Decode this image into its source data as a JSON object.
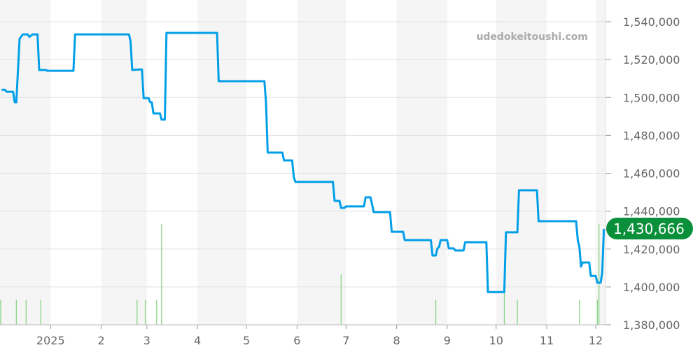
{
  "watermark": "udedokeitoushi.com",
  "current_price_label": "1,430,666",
  "colors": {
    "line": "#009fe8",
    "volume": "#88d488",
    "badge": "#0a8f3a",
    "band": "#f5f5f5",
    "grid": "#e0e0e0"
  },
  "chart_data": {
    "type": "line",
    "title": "",
    "xlabel": "",
    "ylabel": "",
    "xlim": [
      "2024-12-01",
      "2025-12-07"
    ],
    "ylim": [
      1380000,
      1540000
    ],
    "grid": true,
    "y_axis_position": "right",
    "y_ticks": [
      1380000,
      1400000,
      1420000,
      1440000,
      1460000,
      1480000,
      1500000,
      1520000,
      1540000
    ],
    "y_tick_labels": [
      "1,380,000",
      "1,400,000",
      "1,420,000",
      "1,440,000",
      "1,460,000",
      "1,480,000",
      "1,500,000",
      "1,520,000",
      "1,540,000"
    ],
    "x_ticks": [
      {
        "date": "2025-01-01",
        "label": "2025"
      },
      {
        "date": "2025-02-01",
        "label": "2"
      },
      {
        "date": "2025-03-01",
        "label": "3"
      },
      {
        "date": "2025-04-01",
        "label": "4"
      },
      {
        "date": "2025-05-01",
        "label": "5"
      },
      {
        "date": "2025-06-01",
        "label": "6"
      },
      {
        "date": "2025-07-01",
        "label": "7"
      },
      {
        "date": "2025-08-01",
        "label": "8"
      },
      {
        "date": "2025-09-01",
        "label": "9"
      },
      {
        "date": "2025-10-01",
        "label": "10"
      },
      {
        "date": "2025-11-01",
        "label": "11"
      },
      {
        "date": "2025-12-01",
        "label": "12"
      }
    ],
    "shaded_months": [
      [
        "2024-12-01",
        "2025-01-01"
      ],
      [
        "2025-02-01",
        "2025-03-01"
      ],
      [
        "2025-04-01",
        "2025-05-01"
      ],
      [
        "2025-06-01",
        "2025-07-01"
      ],
      [
        "2025-08-01",
        "2025-09-01"
      ],
      [
        "2025-10-01",
        "2025-11-01"
      ],
      [
        "2025-12-01",
        "2025-12-07"
      ]
    ],
    "series": [
      {
        "points": [
          [
            "2024-12-02",
            1504100
          ],
          [
            "2024-12-04",
            1504100
          ],
          [
            "2024-12-05",
            1503000
          ],
          [
            "2024-12-09",
            1503000
          ],
          [
            "2024-12-10",
            1497500
          ],
          [
            "2024-12-11",
            1497500
          ],
          [
            "2024-12-13",
            1531000
          ],
          [
            "2024-12-15",
            1533300
          ],
          [
            "2024-12-18",
            1533300
          ],
          [
            "2024-12-19",
            1532000
          ],
          [
            "2024-12-21",
            1533300
          ],
          [
            "2024-12-24",
            1533300
          ],
          [
            "2024-12-25",
            1514500
          ],
          [
            "2024-12-29",
            1514500
          ],
          [
            "2024-12-30",
            1514100
          ],
          [
            "2025-01-15",
            1514100
          ],
          [
            "2025-01-16",
            1533300
          ],
          [
            "2025-02-18",
            1533300
          ],
          [
            "2025-02-19",
            1529600
          ],
          [
            "2025-02-20",
            1514500
          ],
          [
            "2025-02-24",
            1514800
          ],
          [
            "2025-02-26",
            1514800
          ],
          [
            "2025-02-27",
            1499700
          ],
          [
            "2025-03-02",
            1499700
          ],
          [
            "2025-03-03",
            1497500
          ],
          [
            "2025-03-04",
            1497500
          ],
          [
            "2025-03-05",
            1491600
          ],
          [
            "2025-03-09",
            1491600
          ],
          [
            "2025-03-10",
            1488300
          ],
          [
            "2025-03-12",
            1488300
          ],
          [
            "2025-03-13",
            1534100
          ],
          [
            "2025-04-13",
            1534100
          ],
          [
            "2025-04-14",
            1508600
          ],
          [
            "2025-05-12",
            1508600
          ],
          [
            "2025-05-13",
            1497500
          ],
          [
            "2025-05-14",
            1470900
          ],
          [
            "2025-05-23",
            1470900
          ],
          [
            "2025-05-24",
            1466800
          ],
          [
            "2025-05-29",
            1466800
          ],
          [
            "2025-05-30",
            1458000
          ],
          [
            "2025-05-31",
            1455400
          ],
          [
            "2025-06-23",
            1455400
          ],
          [
            "2025-06-24",
            1445400
          ],
          [
            "2025-06-27",
            1445400
          ],
          [
            "2025-06-28",
            1441700
          ],
          [
            "2025-06-30",
            1441700
          ],
          [
            "2025-07-01",
            1442500
          ],
          [
            "2025-07-12",
            1442500
          ],
          [
            "2025-07-13",
            1447300
          ],
          [
            "2025-07-16",
            1447300
          ],
          [
            "2025-07-18",
            1439500
          ],
          [
            "2025-07-28",
            1439500
          ],
          [
            "2025-07-29",
            1429100
          ],
          [
            "2025-08-05",
            1429100
          ],
          [
            "2025-08-06",
            1424700
          ],
          [
            "2025-08-22",
            1424700
          ],
          [
            "2025-08-23",
            1416600
          ],
          [
            "2025-08-25",
            1416600
          ],
          [
            "2025-08-26",
            1420300
          ],
          [
            "2025-08-27",
            1421000
          ],
          [
            "2025-08-28",
            1424700
          ],
          [
            "2025-09-01",
            1424700
          ],
          [
            "2025-09-02",
            1420300
          ],
          [
            "2025-09-05",
            1420300
          ],
          [
            "2025-09-06",
            1419200
          ],
          [
            "2025-09-11",
            1419200
          ],
          [
            "2025-09-12",
            1423600
          ],
          [
            "2025-09-25",
            1423600
          ],
          [
            "2025-09-26",
            1397300
          ],
          [
            "2025-10-06",
            1397300
          ],
          [
            "2025-10-07",
            1428800
          ],
          [
            "2025-10-14",
            1428800
          ],
          [
            "2025-10-15",
            1451000
          ],
          [
            "2025-10-26",
            1451000
          ],
          [
            "2025-10-27",
            1434700
          ],
          [
            "2025-11-19",
            1434700
          ],
          [
            "2025-11-20",
            1424700
          ],
          [
            "2025-11-21",
            1421000
          ],
          [
            "2025-11-22",
            1410700
          ],
          [
            "2025-11-23",
            1412900
          ],
          [
            "2025-11-27",
            1412900
          ],
          [
            "2025-11-28",
            1405800
          ],
          [
            "2025-12-01",
            1405800
          ],
          [
            "2025-12-02",
            1402200
          ],
          [
            "2025-12-04",
            1402200
          ],
          [
            "2025-12-05",
            1407400
          ],
          [
            "2025-12-06",
            1430666
          ]
        ]
      }
    ],
    "volume": {
      "relative_heights": true,
      "points": [
        [
          "2024-12-01",
          1
        ],
        [
          "2024-12-11",
          1
        ],
        [
          "2024-12-17",
          1
        ],
        [
          "2024-12-26",
          1
        ],
        [
          "2025-02-23",
          1
        ],
        [
          "2025-02-28",
          1
        ],
        [
          "2025-03-07",
          1
        ],
        [
          "2025-03-10",
          4
        ],
        [
          "2025-06-28",
          2
        ],
        [
          "2025-08-25",
          1
        ],
        [
          "2025-10-06",
          2
        ],
        [
          "2025-10-14",
          1
        ],
        [
          "2025-11-21",
          1
        ],
        [
          "2025-12-02",
          1
        ],
        [
          "2025-12-03",
          4
        ]
      ]
    }
  }
}
